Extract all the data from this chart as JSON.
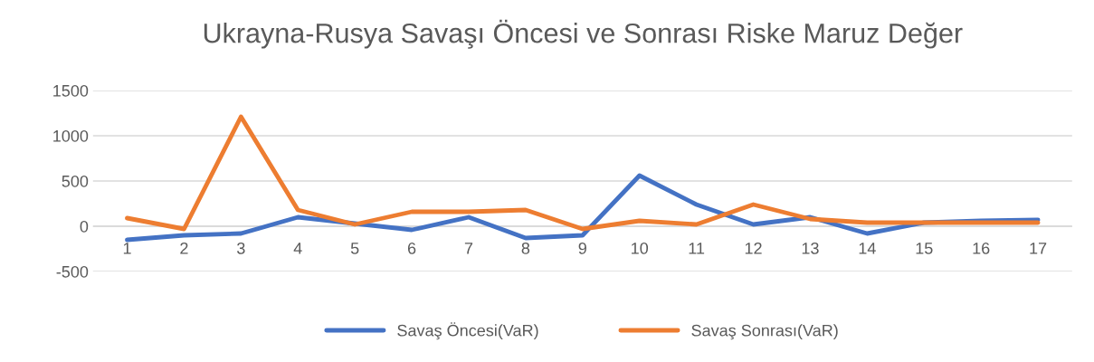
{
  "chart_data": {
    "type": "line",
    "title": "Ukrayna-Rusya Savaşı Öncesi ve Sonrası Riske Maruz Değer",
    "categories": [
      "1",
      "2",
      "3",
      "4",
      "5",
      "6",
      "7",
      "8",
      "9",
      "10",
      "11",
      "12",
      "13",
      "14",
      "15",
      "16",
      "17"
    ],
    "series": [
      {
        "name": "Savaş Öncesi(VaR)",
        "color": "#4472c4",
        "values": [
          -150,
          -100,
          -80,
          100,
          30,
          -40,
          100,
          -130,
          -100,
          560,
          240,
          20,
          100,
          -80,
          40,
          60,
          70
        ]
      },
      {
        "name": "Savaş Sonrası(VaR)",
        "color": "#ed7d31",
        "values": [
          90,
          -30,
          1210,
          180,
          20,
          160,
          160,
          180,
          -30,
          60,
          20,
          240,
          80,
          40,
          40,
          40,
          40
        ]
      }
    ],
    "ylim": [
      -500,
      1500
    ],
    "yticks": [
      -500,
      0,
      500,
      1000,
      1500
    ],
    "grid": "y",
    "legend": "bottom",
    "marker": "none",
    "line_style": "solid"
  }
}
